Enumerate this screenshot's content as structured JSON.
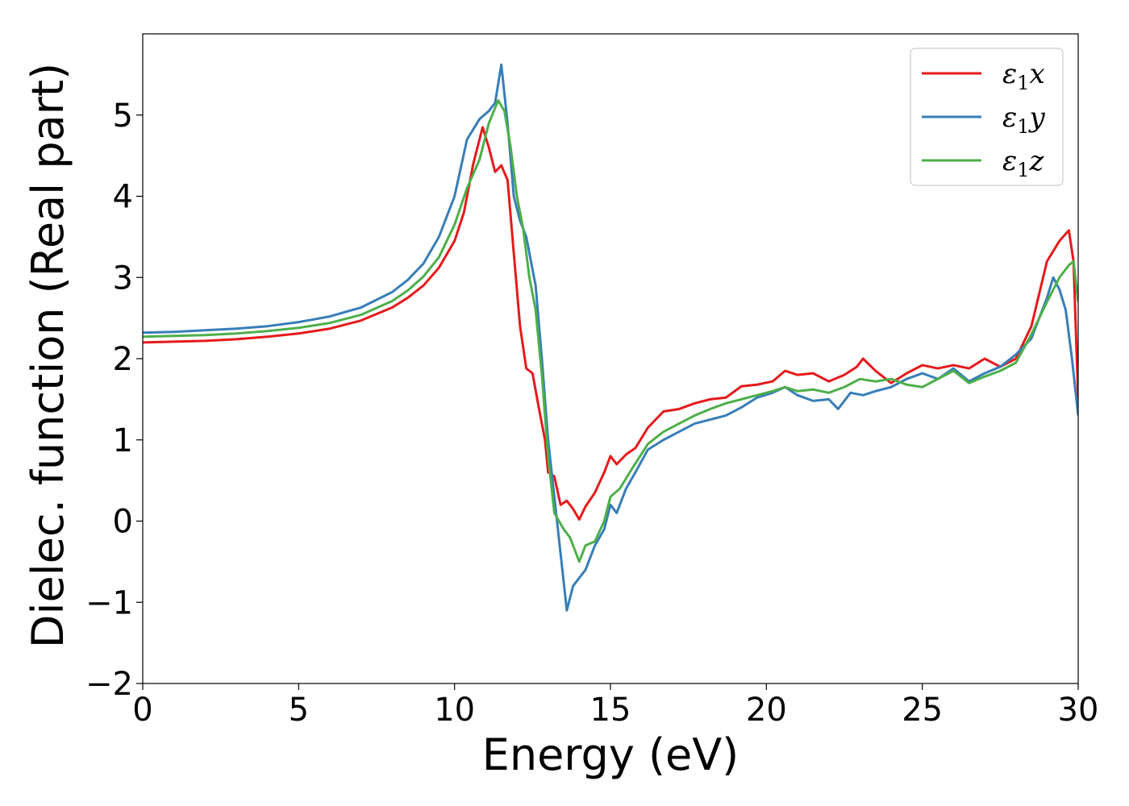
{
  "chart_data": {
    "type": "line",
    "title": "",
    "xlabel": "Energy (eV)",
    "ylabel": "Dielec. function (Real part)",
    "xlim": [
      0,
      30
    ],
    "ylim": [
      -2,
      6
    ],
    "xticks": [
      0,
      5,
      10,
      15,
      20,
      25,
      30
    ],
    "xtick_labels": [
      "0",
      "5",
      "10",
      "15",
      "20",
      "25",
      "30"
    ],
    "yticks": [
      -2,
      -1,
      0,
      1,
      2,
      3,
      4,
      5
    ],
    "ytick_labels": [
      "−2",
      "−1",
      "0",
      "1",
      "2",
      "3",
      "4",
      "5"
    ],
    "grid": false,
    "legend_position": "top-right",
    "series": [
      {
        "name": "ε1x",
        "legend_main": "ε",
        "legend_sub": "1",
        "legend_var": "x",
        "color": "#e41a1c",
        "points": [
          [
            0,
            2.2
          ],
          [
            1,
            2.21
          ],
          [
            2,
            2.22
          ],
          [
            3,
            2.24
          ],
          [
            4,
            2.27
          ],
          [
            5,
            2.31
          ],
          [
            6,
            2.37
          ],
          [
            7,
            2.47
          ],
          [
            8,
            2.63
          ],
          [
            8.5,
            2.75
          ],
          [
            9,
            2.9
          ],
          [
            9.5,
            3.12
          ],
          [
            10,
            3.45
          ],
          [
            10.3,
            3.8
          ],
          [
            10.6,
            4.4
          ],
          [
            10.9,
            4.85
          ],
          [
            11.1,
            4.6
          ],
          [
            11.3,
            4.3
          ],
          [
            11.5,
            4.38
          ],
          [
            11.7,
            4.2
          ],
          [
            11.9,
            3.3
          ],
          [
            12.1,
            2.4
          ],
          [
            12.3,
            1.88
          ],
          [
            12.5,
            1.82
          ],
          [
            12.7,
            1.4
          ],
          [
            12.9,
            1.0
          ],
          [
            13.0,
            0.6
          ],
          [
            13.2,
            0.55
          ],
          [
            13.4,
            0.2
          ],
          [
            13.6,
            0.25
          ],
          [
            13.8,
            0.15
          ],
          [
            14.0,
            0.02
          ],
          [
            14.2,
            0.18
          ],
          [
            14.5,
            0.35
          ],
          [
            14.8,
            0.6
          ],
          [
            15.0,
            0.8
          ],
          [
            15.2,
            0.7
          ],
          [
            15.5,
            0.82
          ],
          [
            15.8,
            0.9
          ],
          [
            16.2,
            1.15
          ],
          [
            16.7,
            1.35
          ],
          [
            17.2,
            1.38
          ],
          [
            17.7,
            1.45
          ],
          [
            18.2,
            1.5
          ],
          [
            18.7,
            1.52
          ],
          [
            19.2,
            1.66
          ],
          [
            19.7,
            1.68
          ],
          [
            20.2,
            1.72
          ],
          [
            20.6,
            1.85
          ],
          [
            21.0,
            1.8
          ],
          [
            21.5,
            1.82
          ],
          [
            22.0,
            1.72
          ],
          [
            22.5,
            1.8
          ],
          [
            22.9,
            1.9
          ],
          [
            23.1,
            2.0
          ],
          [
            23.5,
            1.85
          ],
          [
            24.0,
            1.7
          ],
          [
            24.5,
            1.82
          ],
          [
            25.0,
            1.92
          ],
          [
            25.5,
            1.88
          ],
          [
            26.0,
            1.92
          ],
          [
            26.5,
            1.88
          ],
          [
            27.0,
            2.0
          ],
          [
            27.5,
            1.9
          ],
          [
            28.0,
            2.0
          ],
          [
            28.5,
            2.4
          ],
          [
            29.0,
            3.2
          ],
          [
            29.4,
            3.45
          ],
          [
            29.7,
            3.58
          ],
          [
            29.85,
            3.2
          ],
          [
            30.0,
            1.5
          ]
        ]
      },
      {
        "name": "ε1y",
        "legend_main": "ε",
        "legend_sub": "1",
        "legend_var": "y",
        "color": "#377eb8",
        "points": [
          [
            0,
            2.32
          ],
          [
            1,
            2.33
          ],
          [
            2,
            2.35
          ],
          [
            3,
            2.37
          ],
          [
            4,
            2.4
          ],
          [
            5,
            2.45
          ],
          [
            6,
            2.52
          ],
          [
            7,
            2.63
          ],
          [
            8,
            2.82
          ],
          [
            8.5,
            2.97
          ],
          [
            9,
            3.17
          ],
          [
            9.5,
            3.5
          ],
          [
            10,
            4.0
          ],
          [
            10.4,
            4.7
          ],
          [
            10.8,
            4.95
          ],
          [
            11.1,
            5.05
          ],
          [
            11.3,
            5.15
          ],
          [
            11.5,
            5.62
          ],
          [
            11.7,
            4.9
          ],
          [
            11.9,
            4.0
          ],
          [
            12.1,
            3.7
          ],
          [
            12.3,
            3.5
          ],
          [
            12.6,
            2.9
          ],
          [
            12.8,
            2.0
          ],
          [
            13.0,
            1.0
          ],
          [
            13.2,
            0.3
          ],
          [
            13.4,
            -0.4
          ],
          [
            13.6,
            -1.1
          ],
          [
            13.8,
            -0.8
          ],
          [
            14.0,
            -0.7
          ],
          [
            14.2,
            -0.6
          ],
          [
            14.5,
            -0.3
          ],
          [
            14.8,
            -0.1
          ],
          [
            15.0,
            0.2
          ],
          [
            15.2,
            0.1
          ],
          [
            15.5,
            0.4
          ],
          [
            15.8,
            0.6
          ],
          [
            16.2,
            0.88
          ],
          [
            16.7,
            1.0
          ],
          [
            17.2,
            1.1
          ],
          [
            17.7,
            1.2
          ],
          [
            18.2,
            1.25
          ],
          [
            18.7,
            1.3
          ],
          [
            19.2,
            1.4
          ],
          [
            19.7,
            1.52
          ],
          [
            20.2,
            1.58
          ],
          [
            20.6,
            1.65
          ],
          [
            21.0,
            1.55
          ],
          [
            21.5,
            1.48
          ],
          [
            22.0,
            1.5
          ],
          [
            22.3,
            1.38
          ],
          [
            22.7,
            1.58
          ],
          [
            23.1,
            1.55
          ],
          [
            23.5,
            1.6
          ],
          [
            24.0,
            1.65
          ],
          [
            24.5,
            1.75
          ],
          [
            25.0,
            1.82
          ],
          [
            25.5,
            1.75
          ],
          [
            26.0,
            1.88
          ],
          [
            26.5,
            1.72
          ],
          [
            27.0,
            1.82
          ],
          [
            27.5,
            1.9
          ],
          [
            28.0,
            2.05
          ],
          [
            28.5,
            2.25
          ],
          [
            29.0,
            2.75
          ],
          [
            29.2,
            3.0
          ],
          [
            29.4,
            2.85
          ],
          [
            29.6,
            2.6
          ],
          [
            29.8,
            2.0
          ],
          [
            30.0,
            1.3
          ]
        ]
      },
      {
        "name": "ε1z",
        "legend_main": "ε",
        "legend_sub": "1",
        "legend_var": "z",
        "color": "#4daf4a",
        "points": [
          [
            0,
            2.27
          ],
          [
            1,
            2.28
          ],
          [
            2,
            2.29
          ],
          [
            3,
            2.31
          ],
          [
            4,
            2.34
          ],
          [
            5,
            2.38
          ],
          [
            6,
            2.44
          ],
          [
            7,
            2.54
          ],
          [
            8,
            2.71
          ],
          [
            8.5,
            2.84
          ],
          [
            9,
            3.01
          ],
          [
            9.5,
            3.25
          ],
          [
            10,
            3.65
          ],
          [
            10.4,
            4.1
          ],
          [
            10.8,
            4.45
          ],
          [
            11.1,
            4.9
          ],
          [
            11.4,
            5.18
          ],
          [
            11.6,
            5.05
          ],
          [
            11.8,
            4.6
          ],
          [
            12.0,
            4.0
          ],
          [
            12.2,
            3.6
          ],
          [
            12.4,
            3.0
          ],
          [
            12.6,
            2.6
          ],
          [
            12.8,
            1.8
          ],
          [
            13.0,
            0.8
          ],
          [
            13.2,
            0.1
          ],
          [
            13.5,
            -0.1
          ],
          [
            13.7,
            -0.2
          ],
          [
            14.0,
            -0.5
          ],
          [
            14.2,
            -0.3
          ],
          [
            14.5,
            -0.25
          ],
          [
            14.8,
            0.0
          ],
          [
            15.0,
            0.3
          ],
          [
            15.3,
            0.4
          ],
          [
            15.7,
            0.65
          ],
          [
            16.2,
            0.95
          ],
          [
            16.7,
            1.1
          ],
          [
            17.2,
            1.2
          ],
          [
            17.7,
            1.3
          ],
          [
            18.2,
            1.38
          ],
          [
            18.7,
            1.45
          ],
          [
            19.2,
            1.5
          ],
          [
            19.7,
            1.55
          ],
          [
            20.2,
            1.6
          ],
          [
            20.6,
            1.65
          ],
          [
            21.0,
            1.6
          ],
          [
            21.5,
            1.62
          ],
          [
            22.0,
            1.58
          ],
          [
            22.5,
            1.65
          ],
          [
            23.0,
            1.75
          ],
          [
            23.5,
            1.72
          ],
          [
            24.0,
            1.75
          ],
          [
            24.5,
            1.68
          ],
          [
            25.0,
            1.65
          ],
          [
            25.5,
            1.75
          ],
          [
            26.0,
            1.85
          ],
          [
            26.5,
            1.7
          ],
          [
            27.0,
            1.78
          ],
          [
            27.5,
            1.85
          ],
          [
            28.0,
            1.95
          ],
          [
            28.5,
            2.3
          ],
          [
            29.0,
            2.7
          ],
          [
            29.4,
            3.0
          ],
          [
            29.7,
            3.15
          ],
          [
            29.85,
            3.2
          ],
          [
            30.0,
            2.7
          ]
        ]
      }
    ]
  }
}
